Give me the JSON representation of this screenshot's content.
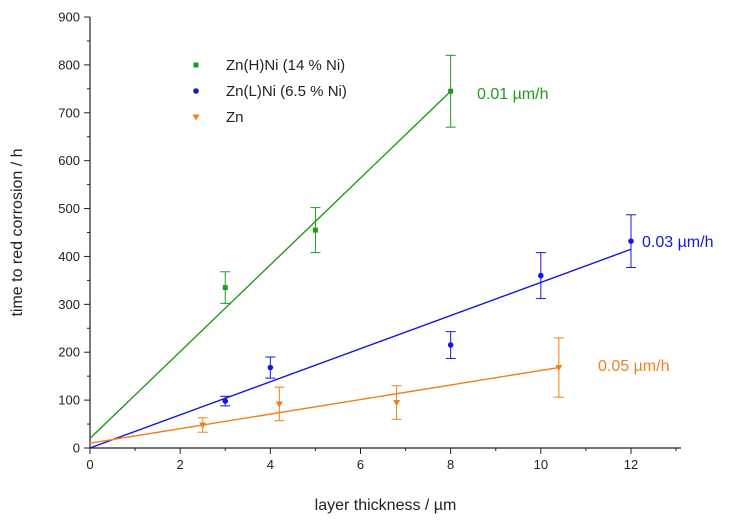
{
  "chart_data": {
    "type": "scatter",
    "xlabel": "layer thickness / µm",
    "ylabel": "time to red corrosion / h",
    "xlim": [
      0,
      13
    ],
    "ylim": [
      0,
      900
    ],
    "xticks": [
      0,
      2,
      4,
      6,
      8,
      10,
      12
    ],
    "yticks": [
      0,
      100,
      200,
      300,
      400,
      500,
      600,
      700,
      800,
      900
    ],
    "grid": false,
    "legend_position": "top-left",
    "series": [
      {
        "name": "Zn(H)Ni (14 % Ni)",
        "color": "#1e9a1e",
        "marker": "square",
        "points": [
          {
            "x": 3,
            "y": 335,
            "err": 33
          },
          {
            "x": 5,
            "y": 455,
            "err": 47
          },
          {
            "x": 8,
            "y": 745,
            "err": 75
          }
        ],
        "fit": {
          "x": [
            0,
            8
          ],
          "y": [
            20,
            745
          ]
        },
        "rate_label": "0.01 µm/h"
      },
      {
        "name": "Zn(L)Ni (6.5 % Ni)",
        "color": "#1515e0",
        "marker": "circle",
        "points": [
          {
            "x": 3,
            "y": 98,
            "err": 10
          },
          {
            "x": 4,
            "y": 168,
            "err": 22
          },
          {
            "x": 8,
            "y": 215,
            "err": 28
          },
          {
            "x": 10,
            "y": 360,
            "err": 48
          },
          {
            "x": 12,
            "y": 432,
            "err": 55
          }
        ],
        "fit": {
          "x": [
            0,
            12
          ],
          "y": [
            0,
            415
          ]
        },
        "rate_label": "0.03 µm/h"
      },
      {
        "name": "Zn",
        "color": "#f0801a",
        "marker": "triangle-down",
        "points": [
          {
            "x": 2.5,
            "y": 48,
            "err": 15
          },
          {
            "x": 4.2,
            "y": 92,
            "err": 35
          },
          {
            "x": 6.8,
            "y": 95,
            "err": 35
          },
          {
            "x": 10.4,
            "y": 168,
            "err": 62
          }
        ],
        "fit": {
          "x": [
            0,
            10.4
          ],
          "y": [
            10,
            168
          ]
        },
        "rate_label": "0.05 µm/h"
      }
    ]
  }
}
